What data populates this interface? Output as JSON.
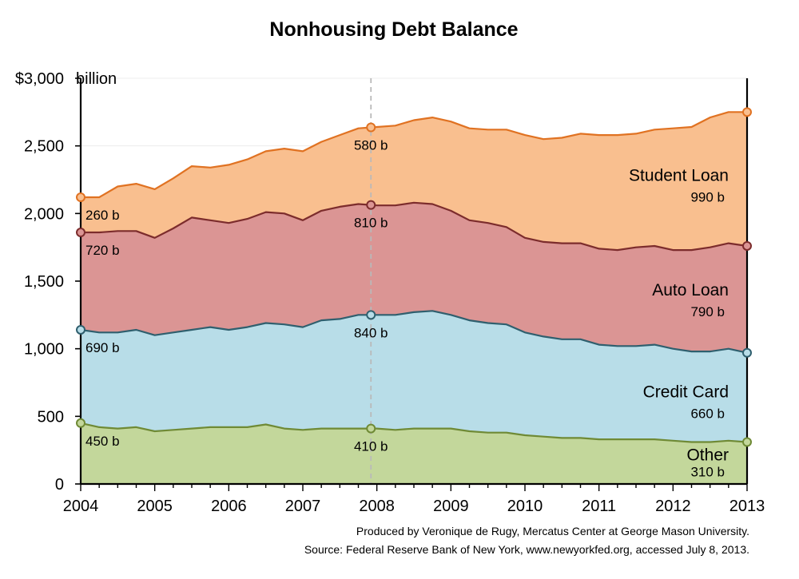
{
  "chart_data": {
    "type": "area",
    "title": "Nonhousing Debt Balance",
    "y_unit_label": "billion",
    "ylim": [
      0,
      3000
    ],
    "yticks": [
      0,
      500,
      1000,
      1500,
      2000,
      2500,
      3000
    ],
    "ytick_labels": [
      "0",
      "500",
      "1,000",
      "1,500",
      "2,000",
      "2,500",
      "$3,000"
    ],
    "xlim": [
      2004,
      2013
    ],
    "xticks": [
      2004,
      2005,
      2006,
      2007,
      2008,
      2009,
      2010,
      2011,
      2012,
      2013
    ],
    "xtick_labels": [
      "2004",
      "2005",
      "2006",
      "2007",
      "2008",
      "2009",
      "2010",
      "2011",
      "2012",
      "2013"
    ],
    "stacked": true,
    "grid": "horizontal",
    "x": [
      2004.0,
      2004.25,
      2004.5,
      2004.75,
      2005.0,
      2005.25,
      2005.5,
      2005.75,
      2006.0,
      2006.25,
      2006.5,
      2006.75,
      2007.0,
      2007.25,
      2007.5,
      2007.75,
      2008.0,
      2008.25,
      2008.5,
      2008.75,
      2009.0,
      2009.25,
      2009.5,
      2009.75,
      2010.0,
      2010.25,
      2010.5,
      2010.75,
      2011.0,
      2011.25,
      2011.5,
      2011.75,
      2012.0,
      2012.25,
      2012.5,
      2012.75,
      2013.0
    ],
    "series": [
      {
        "name": "Other",
        "color": "#c3d79b",
        "line_color": "#6f8a35",
        "values": [
          450,
          420,
          410,
          420,
          390,
          400,
          410,
          420,
          420,
          420,
          440,
          410,
          400,
          410,
          410,
          410,
          410,
          400,
          410,
          410,
          410,
          390,
          380,
          380,
          360,
          350,
          340,
          340,
          330,
          330,
          330,
          330,
          320,
          310,
          310,
          320,
          310
        ],
        "callouts": [
          {
            "x": 2004.0,
            "label": "450 b"
          },
          {
            "x": 2007.92,
            "label": "410 b"
          },
          {
            "x": 2013.0,
            "label": "310 b"
          }
        ]
      },
      {
        "name": "Credit Card",
        "color": "#b8dde8",
        "line_color": "#2f5f6e",
        "values": [
          690,
          700,
          710,
          720,
          710,
          720,
          730,
          740,
          720,
          740,
          750,
          770,
          760,
          800,
          810,
          840,
          840,
          850,
          860,
          870,
          840,
          820,
          810,
          800,
          760,
          740,
          730,
          730,
          700,
          690,
          690,
          700,
          680,
          670,
          670,
          680,
          660
        ],
        "callouts": [
          {
            "x": 2004.0,
            "label": "690 b"
          },
          {
            "x": 2007.92,
            "label": "840 b"
          },
          {
            "x": 2013.0,
            "label": "660 b"
          }
        ]
      },
      {
        "name": "Auto Loan",
        "color": "#db9594",
        "line_color": "#7c2c2c",
        "values": [
          720,
          740,
          750,
          730,
          720,
          770,
          830,
          790,
          790,
          800,
          820,
          820,
          790,
          810,
          830,
          820,
          810,
          810,
          810,
          790,
          770,
          740,
          740,
          720,
          700,
          700,
          710,
          710,
          710,
          710,
          730,
          730,
          730,
          750,
          770,
          780,
          790
        ],
        "callouts": [
          {
            "x": 2004.0,
            "label": "720 b"
          },
          {
            "x": 2007.92,
            "label": "810 b"
          },
          {
            "x": 2013.0,
            "label": "790 b"
          }
        ]
      },
      {
        "name": "Student Loan",
        "color": "#f9bf8f",
        "line_color": "#e07222",
        "values": [
          260,
          260,
          330,
          350,
          360,
          370,
          380,
          390,
          430,
          440,
          450,
          480,
          510,
          510,
          530,
          560,
          580,
          590,
          610,
          640,
          660,
          680,
          690,
          720,
          760,
          760,
          780,
          810,
          840,
          850,
          840,
          860,
          900,
          910,
          960,
          970,
          990
        ],
        "callouts": [
          {
            "x": 2004.0,
            "label": "260 b"
          },
          {
            "x": 2007.92,
            "label": "580 b"
          },
          {
            "x": 2013.0,
            "label": "990 b"
          }
        ]
      }
    ],
    "reference_line_x": 2007.92
  },
  "footer": {
    "line1": "Produced by Veronique de Rugy, Mercatus Center at George Mason University.",
    "line2": "Source: Federal Reserve Bank of New York, www.newyorkfed.org, accessed July 8, 2013."
  }
}
